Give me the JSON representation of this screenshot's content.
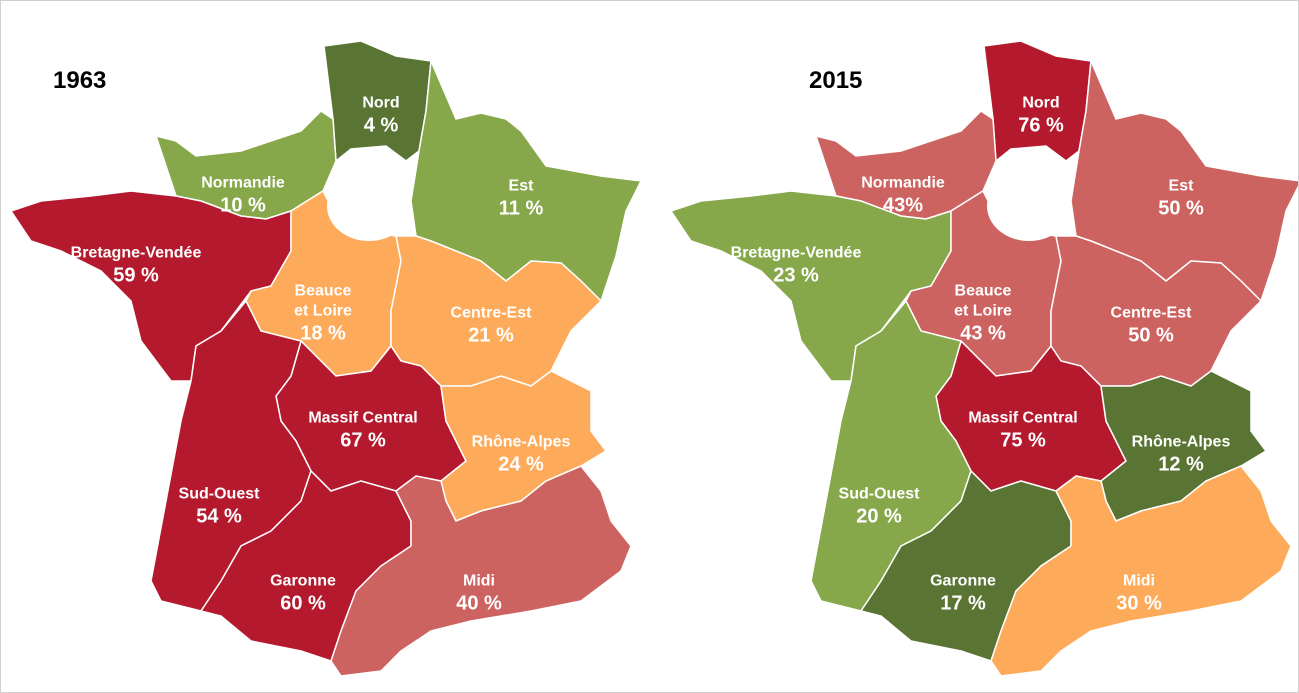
{
  "maps": [
    {
      "title": "1963",
      "regions": [
        {
          "name": "Nord",
          "value": 4,
          "value_label": "4 %",
          "color": "#5a7433"
        },
        {
          "name": "Normandie",
          "value": 10,
          "value_label": "10 %",
          "color": "#86a84a"
        },
        {
          "name": "Est",
          "value": 11,
          "value_label": "11 %",
          "color": "#86a84a"
        },
        {
          "name": "Bretagne-Vendée",
          "value": 59,
          "value_label": "59 %",
          "color": "#b5192e"
        },
        {
          "name": "Beauce et Loire",
          "value": 18,
          "value_label": "18 %",
          "color": "#fdab5a"
        },
        {
          "name": "Centre-Est",
          "value": 21,
          "value_label": "21 %",
          "color": "#fdab5a"
        },
        {
          "name": "Massif Central",
          "value": 67,
          "value_label": "67 %",
          "color": "#b5192e"
        },
        {
          "name": "Rhône-Alpes",
          "value": 24,
          "value_label": "24 %",
          "color": "#fdab5a"
        },
        {
          "name": "Sud-Ouest",
          "value": 54,
          "value_label": "54 %",
          "color": "#b5192e"
        },
        {
          "name": "Garonne",
          "value": 60,
          "value_label": "60 %",
          "color": "#b5192e"
        },
        {
          "name": "Midi",
          "value": 40,
          "value_label": "40 %",
          "color": "#cd6360"
        }
      ]
    },
    {
      "title": "2015",
      "regions": [
        {
          "name": "Nord",
          "value": 76,
          "value_label": "76 %",
          "color": "#b5192e"
        },
        {
          "name": "Normandie",
          "value": 43,
          "value_label": "43%",
          "color": "#cd6360"
        },
        {
          "name": "Est",
          "value": 50,
          "value_label": "50 %",
          "color": "#cd6360"
        },
        {
          "name": "Bretagne-Vendée",
          "value": 23,
          "value_label": "23 %",
          "color": "#86a84a"
        },
        {
          "name": "Beauce et Loire",
          "value": 43,
          "value_label": "43 %",
          "color": "#cd6360"
        },
        {
          "name": "Centre-Est",
          "value": 50,
          "value_label": "50 %",
          "color": "#cd6360"
        },
        {
          "name": "Massif Central",
          "value": 75,
          "value_label": "75 %",
          "color": "#b5192e"
        },
        {
          "name": "Rhône-Alpes",
          "value": 12,
          "value_label": "12 %",
          "color": "#5a7433"
        },
        {
          "name": "Sud-Ouest",
          "value": 20,
          "value_label": "20 %",
          "color": "#86a84a"
        },
        {
          "name": "Garonne",
          "value": 17,
          "value_label": "17 %",
          "color": "#5a7433"
        },
        {
          "name": "Midi",
          "value": 30,
          "value_label": "30 %",
          "color": "#fdab5a"
        }
      ]
    }
  ]
}
